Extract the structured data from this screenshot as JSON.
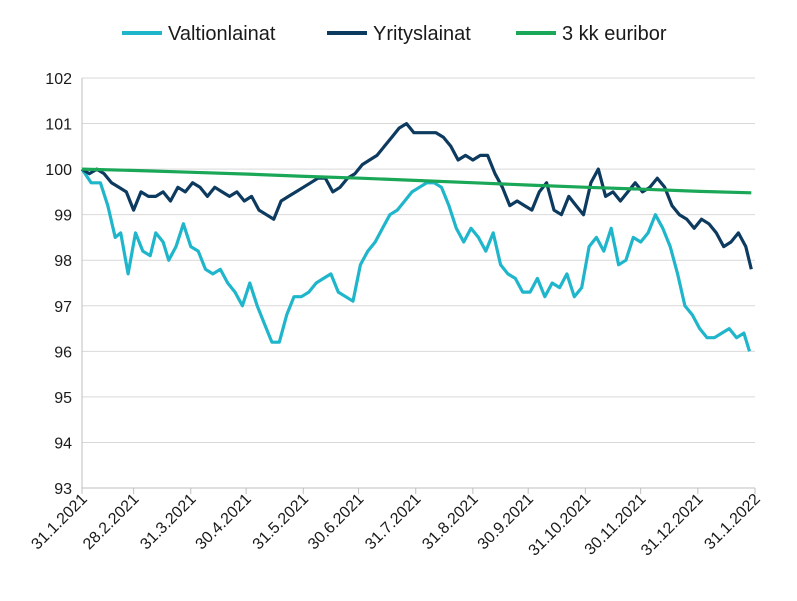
{
  "chart_data": {
    "type": "line",
    "title": "",
    "xlabel": "",
    "ylabel": "",
    "ylim": [
      93,
      102
    ],
    "yticks": [
      "93",
      "94",
      "95",
      "96",
      "97",
      "98",
      "99",
      "100",
      "101",
      "102"
    ],
    "xlim": [
      "2021-01-31",
      "2022-01-31"
    ],
    "xticks": [
      "31.1.2021",
      "28.2.2021",
      "31.3.2021",
      "30.4.2021",
      "31.5.2021",
      "30.6.2021",
      "31.7.2021",
      "31.8.2021",
      "30.9.2021",
      "31.10.2021",
      "30.11.2021",
      "31.12.2021",
      "31.1.2022"
    ],
    "grid": "horizontal",
    "legend": "top",
    "series": [
      {
        "name": "Valtionlainat",
        "color": "#1fb6cc",
        "x": [
          "2021-01-31",
          "2021-02-05",
          "2021-02-10",
          "2021-02-14",
          "2021-02-18",
          "2021-02-21",
          "2021-02-25",
          "2021-03-01",
          "2021-03-05",
          "2021-03-09",
          "2021-03-12",
          "2021-03-16",
          "2021-03-19",
          "2021-03-23",
          "2021-03-27",
          "2021-03-31",
          "2021-04-04",
          "2021-04-08",
          "2021-04-12",
          "2021-04-16",
          "2021-04-20",
          "2021-04-24",
          "2021-04-28",
          "2021-05-02",
          "2021-05-06",
          "2021-05-10",
          "2021-05-14",
          "2021-05-18",
          "2021-05-22",
          "2021-05-26",
          "2021-05-30",
          "2021-06-03",
          "2021-06-07",
          "2021-06-11",
          "2021-06-15",
          "2021-06-19",
          "2021-06-23",
          "2021-06-27",
          "2021-07-01",
          "2021-07-05",
          "2021-07-09",
          "2021-07-13",
          "2021-07-17",
          "2021-07-21",
          "2021-07-25",
          "2021-07-29",
          "2021-08-02",
          "2021-08-06",
          "2021-08-10",
          "2021-08-14",
          "2021-08-18",
          "2021-08-22",
          "2021-08-26",
          "2021-08-30",
          "2021-09-03",
          "2021-09-07",
          "2021-09-11",
          "2021-09-15",
          "2021-09-19",
          "2021-09-23",
          "2021-09-27",
          "2021-10-01",
          "2021-10-05",
          "2021-10-09",
          "2021-10-13",
          "2021-10-17",
          "2021-10-21",
          "2021-10-25",
          "2021-10-29",
          "2021-11-02",
          "2021-11-06",
          "2021-11-10",
          "2021-11-14",
          "2021-11-18",
          "2021-11-22",
          "2021-11-26",
          "2021-11-30",
          "2021-12-04",
          "2021-12-08",
          "2021-12-12",
          "2021-12-16",
          "2021-12-20",
          "2021-12-24",
          "2021-12-28",
          "2022-01-01",
          "2022-01-05",
          "2022-01-09",
          "2022-01-13",
          "2022-01-17",
          "2022-01-21",
          "2022-01-25",
          "2022-01-28"
        ],
        "values": [
          100.0,
          99.7,
          99.7,
          99.2,
          98.5,
          98.6,
          97.7,
          98.6,
          98.2,
          98.1,
          98.6,
          98.4,
          98.0,
          98.3,
          98.8,
          98.3,
          98.2,
          97.8,
          97.7,
          97.8,
          97.5,
          97.3,
          97.0,
          97.5,
          97.0,
          96.6,
          96.2,
          96.2,
          96.8,
          97.2,
          97.2,
          97.3,
          97.5,
          97.6,
          97.7,
          97.3,
          97.2,
          97.1,
          97.9,
          98.2,
          98.4,
          98.7,
          99.0,
          99.1,
          99.3,
          99.5,
          99.6,
          99.7,
          99.7,
          99.6,
          99.2,
          98.7,
          98.4,
          98.7,
          98.5,
          98.2,
          98.6,
          97.9,
          97.7,
          97.6,
          97.3,
          97.3,
          97.6,
          97.2,
          97.5,
          97.4,
          97.7,
          97.2,
          97.4,
          98.3,
          98.5,
          98.2,
          98.7,
          97.9,
          98.0,
          98.5,
          98.4,
          98.6,
          99.0,
          98.7,
          98.3,
          97.7,
          97.0,
          96.8,
          96.5,
          96.3,
          96.3,
          96.4,
          96.5,
          96.3,
          96.4,
          96.0
        ],
        "smooth": false
      },
      {
        "name": "Yrityslainat",
        "color": "#0d3a5f",
        "x": [
          "2021-01-31",
          "2021-02-04",
          "2021-02-08",
          "2021-02-12",
          "2021-02-16",
          "2021-02-20",
          "2021-02-24",
          "2021-02-28",
          "2021-03-04",
          "2021-03-08",
          "2021-03-12",
          "2021-03-16",
          "2021-03-20",
          "2021-03-24",
          "2021-03-28",
          "2021-04-01",
          "2021-04-05",
          "2021-04-09",
          "2021-04-13",
          "2021-04-17",
          "2021-04-21",
          "2021-04-25",
          "2021-04-29",
          "2021-05-03",
          "2021-05-07",
          "2021-05-11",
          "2021-05-15",
          "2021-05-19",
          "2021-05-23",
          "2021-05-27",
          "2021-05-31",
          "2021-06-04",
          "2021-06-08",
          "2021-06-12",
          "2021-06-16",
          "2021-06-20",
          "2021-06-24",
          "2021-06-28",
          "2021-07-02",
          "2021-07-06",
          "2021-07-10",
          "2021-07-14",
          "2021-07-18",
          "2021-07-22",
          "2021-07-26",
          "2021-07-30",
          "2021-08-03",
          "2021-08-07",
          "2021-08-11",
          "2021-08-15",
          "2021-08-19",
          "2021-08-23",
          "2021-08-27",
          "2021-08-31",
          "2021-09-04",
          "2021-09-08",
          "2021-09-12",
          "2021-09-16",
          "2021-09-20",
          "2021-09-24",
          "2021-09-28",
          "2021-10-02",
          "2021-10-06",
          "2021-10-10",
          "2021-10-14",
          "2021-10-18",
          "2021-10-22",
          "2021-10-26",
          "2021-10-30",
          "2021-11-03",
          "2021-11-07",
          "2021-11-11",
          "2021-11-15",
          "2021-11-19",
          "2021-11-23",
          "2021-11-27",
          "2021-12-01",
          "2021-12-05",
          "2021-12-09",
          "2021-12-13",
          "2021-12-17",
          "2021-12-21",
          "2021-12-25",
          "2021-12-29",
          "2022-01-02",
          "2022-01-06",
          "2022-01-10",
          "2022-01-14",
          "2022-01-18",
          "2022-01-22",
          "2022-01-26",
          "2022-01-29"
        ],
        "values": [
          100.0,
          99.9,
          100.0,
          99.9,
          99.7,
          99.6,
          99.5,
          99.1,
          99.5,
          99.4,
          99.4,
          99.5,
          99.3,
          99.6,
          99.5,
          99.7,
          99.6,
          99.4,
          99.6,
          99.5,
          99.4,
          99.5,
          99.3,
          99.4,
          99.1,
          99.0,
          98.9,
          99.3,
          99.4,
          99.5,
          99.6,
          99.7,
          99.8,
          99.8,
          99.5,
          99.6,
          99.8,
          99.9,
          100.1,
          100.2,
          100.3,
          100.5,
          100.7,
          100.9,
          101.0,
          100.8,
          100.8,
          100.8,
          100.8,
          100.7,
          100.5,
          100.2,
          100.3,
          100.2,
          100.3,
          100.3,
          99.9,
          99.6,
          99.2,
          99.3,
          99.2,
          99.1,
          99.5,
          99.7,
          99.1,
          99.0,
          99.4,
          99.2,
          99.0,
          99.7,
          100.0,
          99.4,
          99.5,
          99.3,
          99.5,
          99.7,
          99.5,
          99.6,
          99.8,
          99.6,
          99.2,
          99.0,
          98.9,
          98.7,
          98.9,
          98.8,
          98.6,
          98.3,
          98.4,
          98.6,
          98.3,
          97.8
        ],
        "smooth": false
      },
      {
        "name": "3 kk euribor",
        "color": "#1aa757",
        "x": [
          "2021-01-31",
          "2021-03-01",
          "2021-04-01",
          "2021-05-01",
          "2021-06-01",
          "2021-07-01",
          "2021-08-01",
          "2021-09-01",
          "2021-10-01",
          "2021-11-01",
          "2021-12-01",
          "2022-01-01",
          "2022-01-29"
        ],
        "values": [
          100.0,
          99.97,
          99.93,
          99.89,
          99.84,
          99.8,
          99.75,
          99.7,
          99.65,
          99.6,
          99.56,
          99.51,
          99.48
        ],
        "smooth": true
      }
    ]
  }
}
